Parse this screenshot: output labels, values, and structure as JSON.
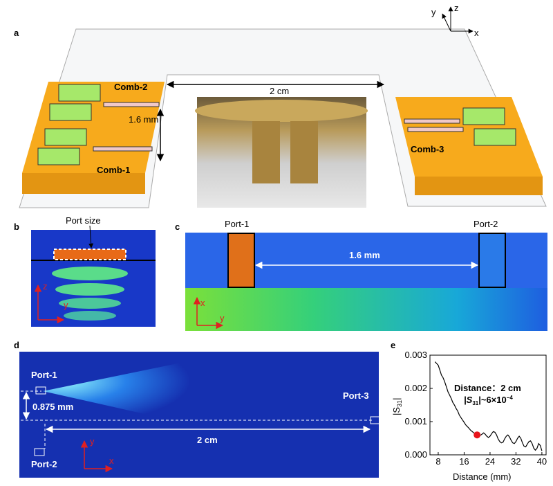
{
  "panels": {
    "a": {
      "label": "a",
      "comb_labels": [
        "Comb-2",
        "Comb-1",
        "Comb-3"
      ],
      "spacing": "1.6 mm",
      "distance": "2 cm",
      "axes": [
        "y",
        "z",
        "x"
      ]
    },
    "b": {
      "label": "b",
      "port_size": "Port size",
      "axes": [
        "z",
        "y"
      ]
    },
    "c": {
      "label": "c",
      "ports": [
        "Port-1",
        "Port-2"
      ],
      "spacing": "1.6 mm",
      "axes": [
        "x",
        "y"
      ]
    },
    "d": {
      "label": "d",
      "ports": [
        "Port-1",
        "Port-2",
        "Port-3"
      ],
      "offset": "0.875 mm",
      "distance": "2 cm",
      "axes": [
        "y",
        "x"
      ]
    }
  },
  "chart_data": {
    "type": "line",
    "label": "e",
    "x_label": "Distance (mm)",
    "y_label_parts": [
      "|S",
      "31",
      "|"
    ],
    "annotation": "Distance：2 cm",
    "annotation2_parts": [
      "|S",
      "31",
      "|~6×10",
      "−4"
    ],
    "x": [
      7,
      7.5,
      8,
      8.5,
      9,
      9.5,
      10,
      10.5,
      11,
      11.5,
      12,
      12.5,
      13,
      13.5,
      14,
      14.5,
      15,
      15.5,
      16,
      16.5,
      17,
      17.5,
      18,
      18.5,
      19,
      19.5,
      20,
      20.5,
      21,
      21.5,
      22,
      22.5,
      23,
      23.5,
      24,
      24.5,
      25,
      25.5,
      26,
      26.5,
      27,
      27.5,
      28,
      28.5,
      29,
      29.5,
      30,
      30.5,
      31,
      31.5,
      32,
      32.5,
      33,
      33.5,
      34,
      34.5,
      35,
      35.5,
      36,
      36.5,
      37,
      37.5,
      38,
      38.5,
      39,
      39.5,
      40
    ],
    "values": [
      0.0028,
      0.00275,
      0.0027,
      0.00255,
      0.0024,
      0.00232,
      0.0022,
      0.00205,
      0.0019,
      0.0018,
      0.0017,
      0.00158,
      0.0015,
      0.0014,
      0.00132,
      0.0012,
      0.00112,
      0.00105,
      0.00098,
      0.0009,
      0.00085,
      0.0008,
      0.00074,
      0.0007,
      0.00066,
      0.00062,
      0.0006,
      0.00058,
      0.00059,
      0.00062,
      0.00066,
      0.00062,
      0.00056,
      0.00052,
      0.00056,
      0.00064,
      0.0007,
      0.00068,
      0.0006,
      0.00048,
      0.0004,
      0.00036,
      0.00038,
      0.00048,
      0.00056,
      0.0006,
      0.00054,
      0.00044,
      0.00036,
      0.00034,
      0.0004,
      0.0005,
      0.00056,
      0.0005,
      0.00036,
      0.00026,
      0.00024,
      0.00032,
      0.0004,
      0.00042,
      0.00034,
      0.0002,
      0.00014,
      0.0002,
      0.00034,
      0.00028,
      0.00012
    ],
    "color": "#000000",
    "highlight": {
      "x": 20,
      "y": 0.0006,
      "color": "#e8141c"
    },
    "xlim": [
      5.45,
      41.3
    ],
    "ylim": [
      0,
      0.003
    ],
    "xticks": [
      8,
      16,
      24,
      32,
      40
    ],
    "yticks": [
      {
        "value": 0,
        "label": "0.000"
      },
      {
        "value": 0.001,
        "label": "0.001"
      },
      {
        "value": 0.002,
        "label": "0.002"
      },
      {
        "value": 0.003,
        "label": "0.003"
      }
    ]
  }
}
